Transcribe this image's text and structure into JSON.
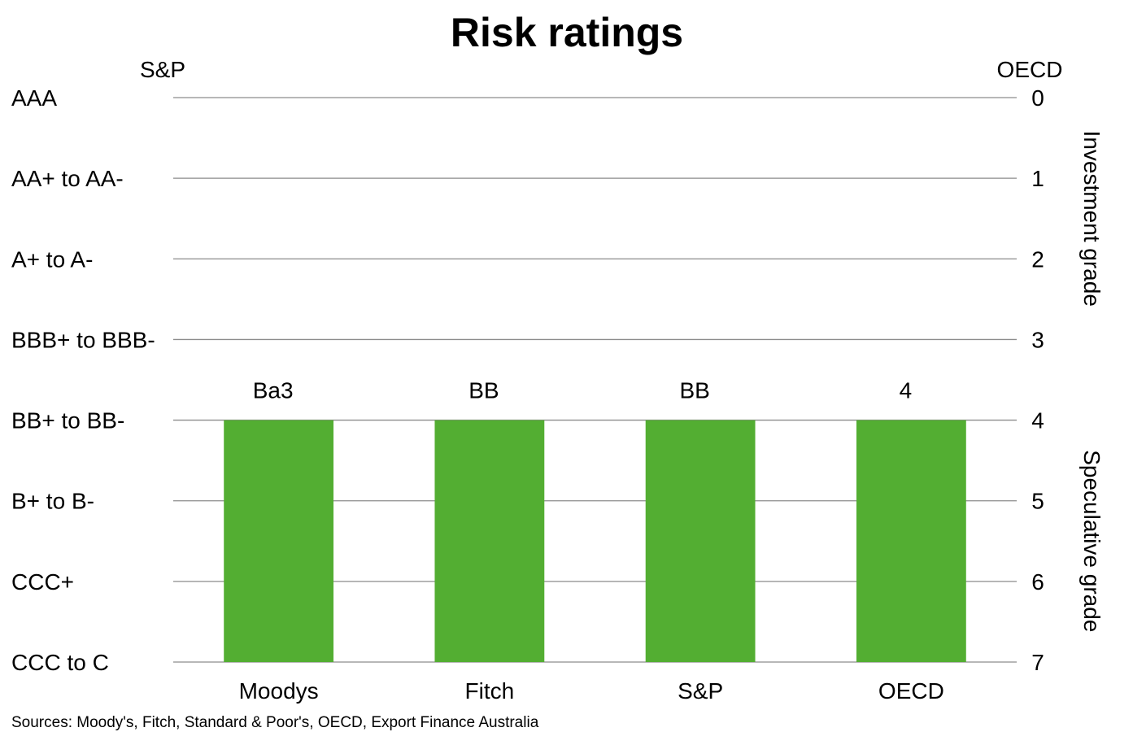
{
  "chart_data": {
    "type": "bar",
    "title": "Risk ratings",
    "left_axis_title": "S&P",
    "right_axis_title": "OECD",
    "left_ticks": [
      "AAA",
      "AA+ to AA-",
      "A+ to A-",
      "BBB+ to BBB-",
      "BB+ to BB-",
      "B+ to B-",
      "CCC+",
      "CCC to C"
    ],
    "right_ticks": [
      "0",
      "1",
      "2",
      "3",
      "4",
      "5",
      "6",
      "7"
    ],
    "ylim": [
      0,
      7
    ],
    "y_inverted": true,
    "grid": true,
    "bar_baseline": 7,
    "right_bands": [
      {
        "label": "Investment grade",
        "from": 0,
        "to": 3
      },
      {
        "label": "Speculative grade",
        "from": 4,
        "to": 7
      }
    ],
    "categories": [
      "Moodys",
      "Fitch",
      "S&P",
      "OECD"
    ],
    "values": [
      4,
      4,
      4,
      4
    ],
    "data_labels": [
      "Ba3",
      "BB",
      "BB",
      "4"
    ],
    "bar_color": "#53ae32",
    "source": "Sources: Moody's, Fitch, Standard & Poor's, OECD, Export Finance Australia"
  }
}
